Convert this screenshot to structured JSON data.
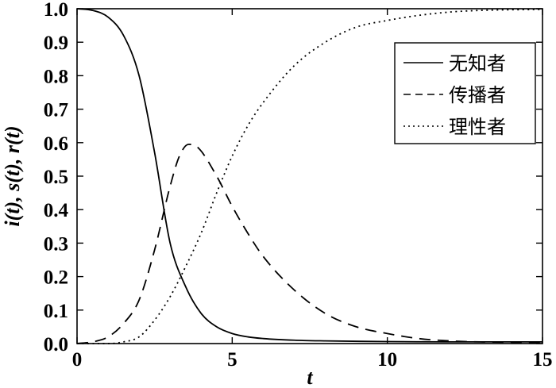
{
  "chart_data": {
    "type": "line",
    "xlabel": "t",
    "ylabel": "i(t), s(t), r(t)",
    "xlim": [
      0,
      15
    ],
    "ylim": [
      0,
      1.0
    ],
    "x_ticks": [
      0,
      5,
      10,
      15
    ],
    "x_tick_labels": [
      "0",
      "5",
      "10",
      "15"
    ],
    "y_ticks": [
      0,
      0.1,
      0.2,
      0.3,
      0.4,
      0.5,
      0.6,
      0.7,
      0.8,
      0.9,
      1.0
    ],
    "y_tick_labels": [
      "0.0",
      "0.1",
      "0.2",
      "0.3",
      "0.4",
      "0.5",
      "0.6",
      "0.7",
      "0.8",
      "0.9",
      "1.0"
    ],
    "grid": false,
    "legend_position": "top-right",
    "series": [
      {
        "name": "无知者",
        "line_style": "solid",
        "color": "#000000",
        "x": [
          0,
          0.5,
          1.0,
          1.5,
          2.0,
          2.5,
          3.0,
          3.5,
          4.0,
          4.5,
          5.0,
          5.5,
          6.0,
          7.0,
          8.0,
          10.0,
          12.0,
          15.0
        ],
        "y": [
          1.0,
          0.995,
          0.975,
          0.92,
          0.8,
          0.57,
          0.3,
          0.17,
          0.09,
          0.05,
          0.03,
          0.02,
          0.015,
          0.01,
          0.008,
          0.006,
          0.005,
          0.005
        ]
      },
      {
        "name": "传播者",
        "line_style": "dashed",
        "color": "#000000",
        "x": [
          0,
          0.5,
          1.0,
          1.5,
          2.0,
          2.5,
          3.0,
          3.3,
          3.6,
          3.9,
          4.5,
          5.0,
          5.5,
          6.0,
          7.0,
          8.0,
          9.0,
          10.0,
          11.0,
          12.0,
          13.0,
          15.0
        ],
        "y": [
          0.0,
          0.005,
          0.02,
          0.06,
          0.13,
          0.28,
          0.47,
          0.56,
          0.595,
          0.585,
          0.5,
          0.41,
          0.33,
          0.26,
          0.16,
          0.09,
          0.05,
          0.03,
          0.015,
          0.008,
          0.005,
          0.003
        ]
      },
      {
        "name": "理性者",
        "line_style": "dotted",
        "color": "#000000",
        "x": [
          0,
          1.0,
          1.5,
          2.0,
          2.5,
          3.0,
          3.5,
          4.0,
          4.5,
          5.0,
          5.5,
          6.0,
          7.0,
          8.0,
          9.0,
          10.0,
          11.0,
          12.0,
          13.0,
          15.0
        ],
        "y": [
          0.0,
          0.0,
          0.005,
          0.02,
          0.07,
          0.14,
          0.23,
          0.33,
          0.45,
          0.56,
          0.65,
          0.72,
          0.83,
          0.9,
          0.945,
          0.965,
          0.98,
          0.99,
          0.995,
          0.998
        ]
      }
    ]
  }
}
